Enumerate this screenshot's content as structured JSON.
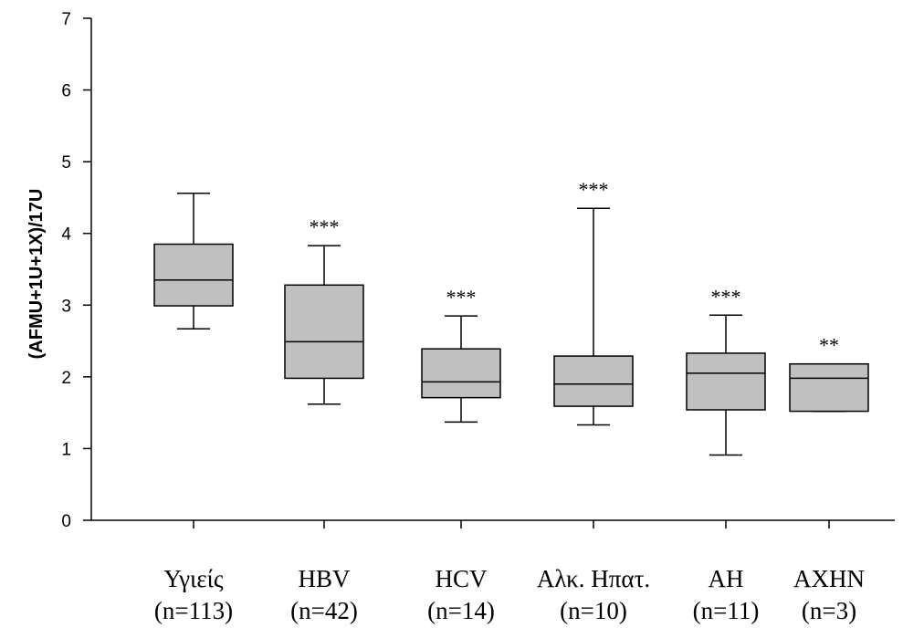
{
  "chart_data": {
    "type": "box",
    "ylabel": "(AFMU+1U+1X)/17U",
    "ylim": [
      0,
      7
    ],
    "yticks": [
      0,
      1,
      2,
      3,
      4,
      5,
      6,
      7
    ],
    "categories": [
      {
        "name": "Υγιείς",
        "n": "(n=113)"
      },
      {
        "name": "HBV",
        "n": "(n=42)"
      },
      {
        "name": "HCV",
        "n": "(n=14)"
      },
      {
        "name": "Αλκ. Ηπατ.",
        "n": "(n=10)"
      },
      {
        "name": "ΑΗ",
        "n": "(n=11)"
      },
      {
        "name": "ΑΧΗΝ",
        "n": "(n=3)"
      }
    ],
    "boxes": [
      {
        "min": 2.67,
        "q1": 2.99,
        "median": 3.35,
        "q3": 3.85,
        "max": 4.56,
        "sig": ""
      },
      {
        "min": 1.62,
        "q1": 1.98,
        "median": 2.49,
        "q3": 3.28,
        "max": 3.83,
        "sig": "***"
      },
      {
        "min": 1.37,
        "q1": 1.71,
        "median": 1.93,
        "q3": 2.39,
        "max": 2.85,
        "sig": "***"
      },
      {
        "min": 1.33,
        "q1": 1.59,
        "median": 1.9,
        "q3": 2.29,
        "max": 4.35,
        "sig": "***"
      },
      {
        "min": 0.91,
        "q1": 1.54,
        "median": 2.05,
        "q3": 2.33,
        "max": 2.86,
        "sig": "***"
      },
      {
        "min": 1.52,
        "q1": 1.52,
        "median": 1.98,
        "q3": 2.18,
        "max": 2.18,
        "sig": "**"
      }
    ],
    "box_color": "#c0c0c0",
    "grid": false,
    "legend": "none"
  }
}
